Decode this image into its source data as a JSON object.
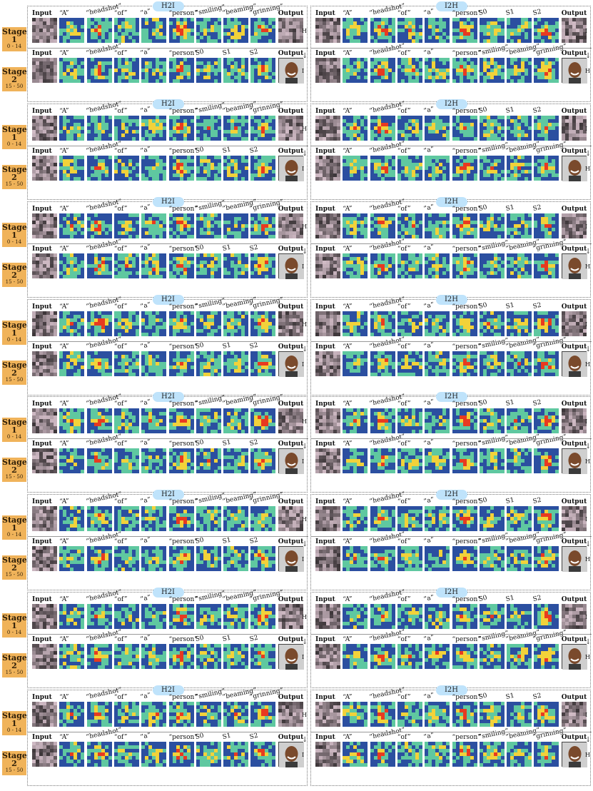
{
  "panels": {
    "h2i": {
      "title": "H2I"
    },
    "i2h": {
      "title": "I2H"
    }
  },
  "stages": [
    {
      "label_line1": "Stage",
      "label_line2": "1",
      "steps": "0 - 14"
    },
    {
      "label_line1": "Stage",
      "label_line2": "2",
      "steps": "15 - 50"
    }
  ],
  "columns": {
    "h2i_stage1": [
      "Input",
      "“A”",
      "“headshot”",
      "“of”",
      "“a”",
      "“person”",
      "“smiling”",
      "“beaming”",
      "“grinning”",
      "Output"
    ],
    "h2i_stage2": [
      "Input",
      "“A”",
      "“headshot”",
      "“of”",
      "“a”",
      "“person”",
      "S0",
      "S1",
      "S2",
      "Output"
    ],
    "i2h_stage1": [
      "Input",
      "“A”",
      "“headshot”",
      "“of”",
      "“a”",
      "“person”",
      "S0",
      "S1",
      "S2",
      "Output"
    ],
    "i2h_stage2": [
      "Input",
      "“A”",
      "“headshot”",
      "“of”",
      "“a”",
      "“person”",
      "“smiling”",
      "“beaming”",
      "“grinning”",
      "Output"
    ]
  },
  "side_marks": {
    "h": "H",
    "i": "I",
    "arrow": "↓"
  },
  "colors": {
    "stage_label": "#f0b35a",
    "pill": "#bfe3fb",
    "heat_low": "#2b4fa0",
    "heat_mid": "#5fc8a0",
    "heat_high": "#e83a20"
  },
  "groups_count": 8
}
